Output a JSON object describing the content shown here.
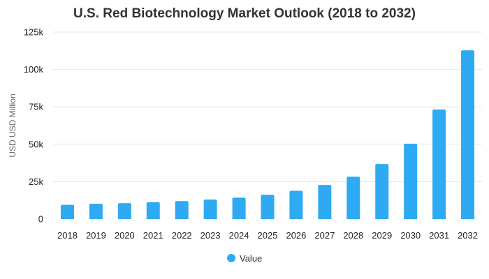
{
  "chart_data": {
    "type": "bar",
    "title": "U.S. Red Biotechnology Market Outlook (2018 to 2032)",
    "xlabel": "",
    "ylabel": "USD USD Million",
    "categories": [
      "2018",
      "2019",
      "2020",
      "2021",
      "2022",
      "2023",
      "2024",
      "2025",
      "2026",
      "2027",
      "2028",
      "2029",
      "2030",
      "2031",
      "2032"
    ],
    "series": [
      {
        "name": "Value",
        "color": "#2eaaf2",
        "values": [
          9500,
          10200,
          10600,
          11200,
          12000,
          13000,
          14300,
          16200,
          18900,
          22800,
          28300,
          36800,
          50400,
          73200,
          112800
        ]
      }
    ],
    "ylim": [
      0,
      125000
    ],
    "yticks": [
      0,
      25000,
      50000,
      75000,
      100000,
      125000
    ],
    "ytick_labels": [
      "0",
      "25k",
      "50k",
      "75k",
      "100k",
      "125k"
    ],
    "grid": true,
    "legend_position": "bottom-center"
  }
}
